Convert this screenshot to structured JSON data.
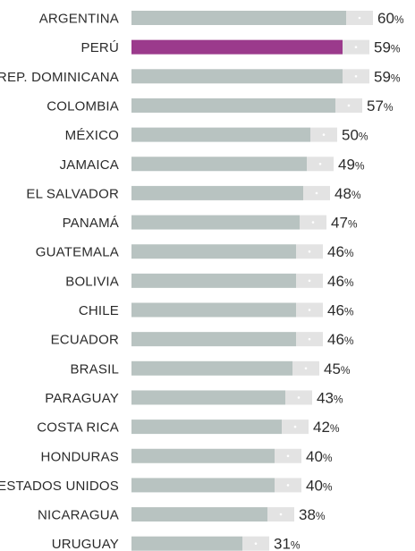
{
  "colors": {
    "bar": "#b8c3c1",
    "highlight": "#9b3a8c",
    "margin": "#e3e3e3",
    "dot": "#ffffff"
  },
  "chart_data": {
    "type": "bar",
    "orientation": "horizontal",
    "unit": "%",
    "highlight_category": "PERÚ",
    "categories": [
      "ARGENTINA",
      "PERÚ",
      "REP. DOMINICANA",
      "COLOMBIA",
      "MÉXICO",
      "JAMAICA",
      "EL SALVADOR",
      "PANAMÁ",
      "GUATEMALA",
      "BOLIVIA",
      "CHILE",
      "ECUADOR",
      "BRASIL",
      "PARAGUAY",
      "COSTA RICA",
      "HONDURAS",
      "ESTADOS UNIDOS",
      "NICARAGUA",
      "URUGUAY"
    ],
    "values": [
      60,
      59,
      59,
      57,
      50,
      49,
      48,
      47,
      46,
      46,
      46,
      46,
      45,
      43,
      42,
      40,
      40,
      38,
      31
    ],
    "value_labels": [
      "60",
      "59",
      "59",
      "57",
      "50",
      "49",
      "48",
      "47",
      "46",
      "46",
      "46",
      "46",
      "45",
      "43",
      "42",
      "40",
      "40",
      "38",
      "31"
    ],
    "xlim": [
      0,
      60
    ],
    "grid": false,
    "legend": "none"
  }
}
